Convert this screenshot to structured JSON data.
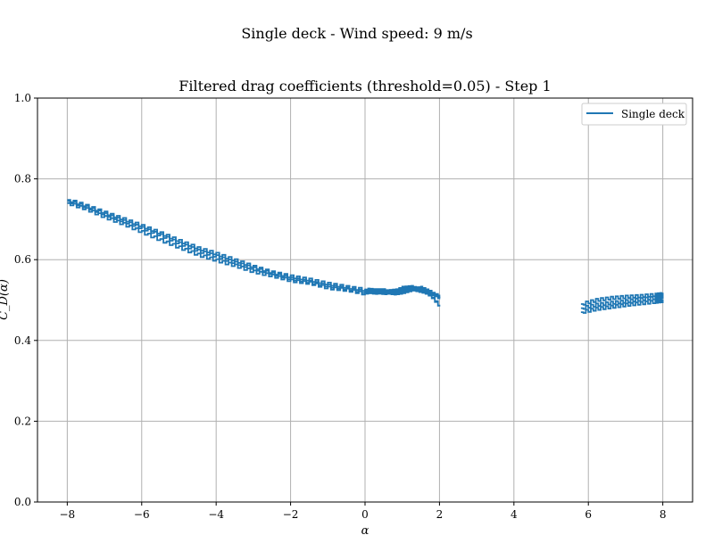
{
  "chart_data": {
    "type": "line",
    "suptitle": "Single deck - Wind speed: 9 m/s",
    "title": "Filtered drag coefficients (threshold=0.05) - Step 1",
    "xlabel": "α",
    "ylabel": "C_D(α)",
    "xlim": [
      -8.8,
      8.8
    ],
    "ylim": [
      0.0,
      1.0
    ],
    "xticks": [
      -8,
      -6,
      -4,
      -2,
      0,
      2,
      4,
      6,
      8
    ],
    "xtick_labels": [
      "−8",
      "−6",
      "−4",
      "−2",
      "0",
      "2",
      "4",
      "6",
      "8"
    ],
    "yticks": [
      0.0,
      0.2,
      0.4,
      0.6,
      0.8,
      1.0
    ],
    "ytick_labels": [
      "0.0",
      "0.2",
      "0.4",
      "0.6",
      "0.8",
      "1.0"
    ],
    "grid": true,
    "legend_position": "top-right",
    "colors": {
      "series": "#1f77b4",
      "grid": "#b0b0b0"
    },
    "series": [
      {
        "name": "Single deck",
        "segments": [
          {
            "x": [
              -8.0,
              -7.5,
              -7.0,
              -6.5,
              -6.0,
              -5.5,
              -5.0,
              -4.5,
              -4.0,
              -3.5,
              -3.0,
              -2.5,
              -2.0,
              -1.5,
              -1.0,
              -0.5,
              0.0
            ],
            "y": [
              0.745,
              0.73,
              0.712,
              0.695,
              0.678,
              0.66,
              0.64,
              0.622,
              0.608,
              0.592,
              0.578,
              0.565,
              0.553,
              0.545,
              0.535,
              0.528,
              0.52
            ]
          },
          {
            "x": [
              -8.0,
              -7.5,
              -7.0,
              -6.5,
              -6.0,
              -5.5,
              -5.0,
              -4.5,
              -4.0,
              -3.5,
              -3.0,
              -2.5,
              -2.0,
              -1.5,
              -1.0,
              -0.5,
              0.0
            ],
            "y": [
              0.74,
              0.725,
              0.705,
              0.688,
              0.668,
              0.648,
              0.63,
              0.612,
              0.598,
              0.585,
              0.57,
              0.56,
              0.548,
              0.542,
              0.53,
              0.525,
              0.515
            ]
          },
          {
            "x": [
              -8.0,
              -7.5,
              -7.0,
              -6.5,
              -6.0,
              -5.5,
              -5.0,
              -4.5,
              -4.0,
              -3.5,
              -3.0,
              -2.5,
              -2.0,
              -1.5,
              -1.0,
              -0.5,
              0.0
            ],
            "y": [
              0.748,
              0.733,
              0.716,
              0.7,
              0.683,
              0.665,
              0.646,
              0.628,
              0.614,
              0.598,
              0.582,
              0.568,
              0.558,
              0.55,
              0.54,
              0.532,
              0.525
            ]
          },
          {
            "x": [
              0.0,
              0.25,
              0.5,
              0.75,
              1.0,
              1.25,
              1.5,
              1.75,
              2.0
            ],
            "y": [
              0.522,
              0.518,
              0.52,
              0.523,
              0.525,
              0.528,
              0.522,
              0.516,
              0.51
            ]
          },
          {
            "x": [
              0.0,
              0.25,
              0.5,
              0.75,
              1.0,
              1.25,
              1.5,
              1.75,
              2.0
            ],
            "y": [
              0.518,
              0.522,
              0.517,
              0.52,
              0.53,
              0.532,
              0.525,
              0.512,
              0.485
            ]
          },
          {
            "x": [
              0.0,
              0.25,
              0.5,
              0.75,
              1.0,
              1.25,
              1.5,
              1.75,
              2.0
            ],
            "y": [
              0.526,
              0.524,
              0.524,
              0.516,
              0.519,
              0.526,
              0.53,
              0.52,
              0.505
            ]
          },
          {
            "x": [
              5.8,
              6.2,
              6.6,
              7.0,
              7.4,
              7.8,
              8.0
            ],
            "y": [
              0.49,
              0.5,
              0.505,
              0.508,
              0.51,
              0.513,
              0.515
            ]
          },
          {
            "x": [
              5.8,
              6.2,
              6.6,
              7.0,
              7.4,
              7.8,
              8.0
            ],
            "y": [
              0.48,
              0.488,
              0.493,
              0.497,
              0.502,
              0.506,
              0.508
            ]
          },
          {
            "x": [
              5.8,
              6.2,
              6.6,
              7.0,
              7.4,
              7.8,
              8.0
            ],
            "y": [
              0.47,
              0.478,
              0.483,
              0.488,
              0.492,
              0.496,
              0.498
            ]
          }
        ]
      }
    ]
  }
}
